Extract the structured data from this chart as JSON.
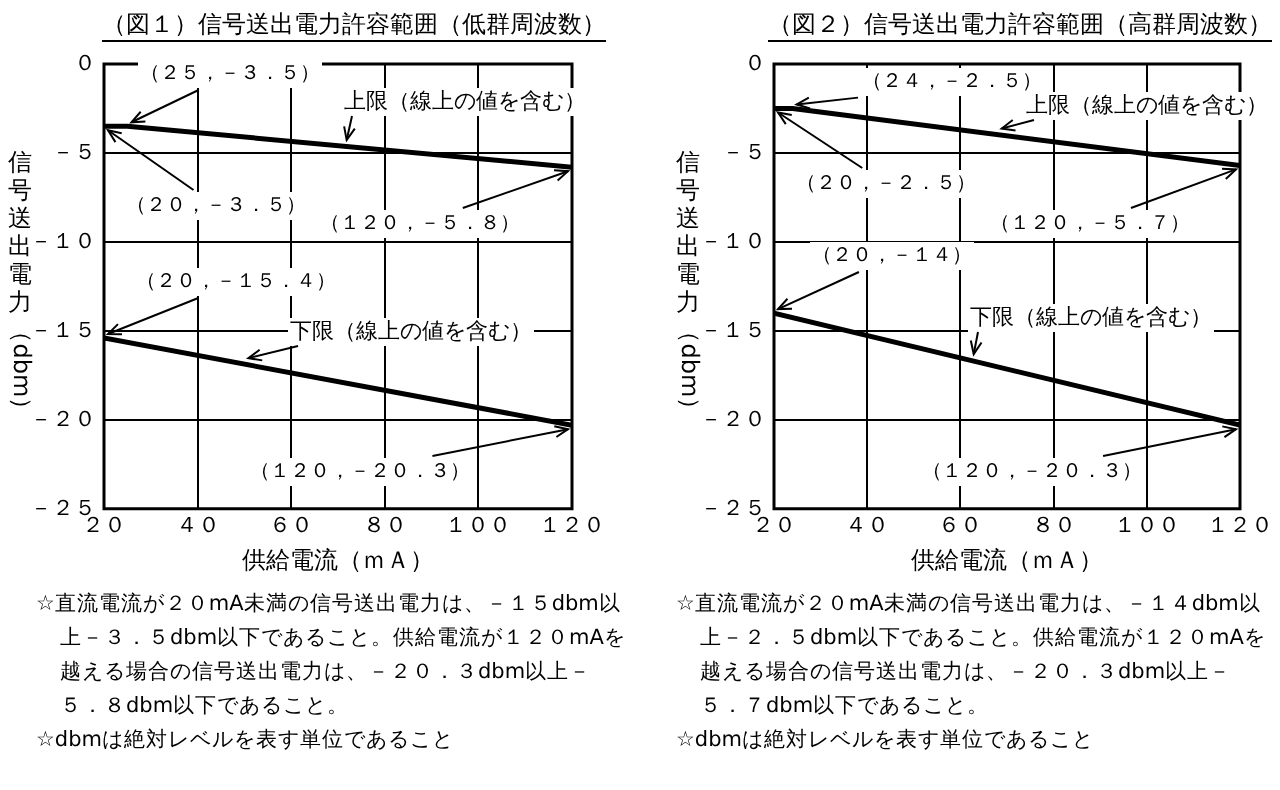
{
  "chart_data": [
    {
      "type": "line",
      "title": "（図１）信号送出電力許容範囲（低群周波数）",
      "xlabel": "供給電流（ｍＡ）",
      "ylabel": "信号送出電力（dbm）",
      "series": [
        {
          "name": "上限（線上の値を含む）",
          "color": "#000000",
          "x": [
            20,
            25,
            120
          ],
          "values": [
            -3.5,
            -3.5,
            -5.8
          ]
        },
        {
          "name": "下限（線上の値を含む）",
          "color": "#000000",
          "x": [
            20,
            120
          ],
          "values": [
            -15.4,
            -20.3
          ]
        }
      ],
      "xlim": [
        20,
        120
      ],
      "xticks": [
        {
          "value": 20,
          "label": "２０"
        },
        {
          "value": 40,
          "label": "４０"
        },
        {
          "value": 60,
          "label": "６０"
        },
        {
          "value": 80,
          "label": "８０"
        },
        {
          "value": 100,
          "label": "１００"
        },
        {
          "value": 120,
          "label": "１２０"
        }
      ],
      "ylim": [
        -25,
        0
      ],
      "yticks": [
        {
          "value": 0,
          "label": "０"
        },
        {
          "value": -5,
          "label": "－５"
        },
        {
          "value": -10,
          "label": "－１０"
        },
        {
          "value": -15,
          "label": "－１５"
        },
        {
          "value": -20,
          "label": "－２０"
        },
        {
          "value": -25,
          "label": "－２５"
        }
      ],
      "grid": true,
      "legend": false,
      "marker": "none",
      "line_style": "solid",
      "annotations": [
        {
          "text": "（２５，－３．５）",
          "x": 25,
          "y": -3.5
        },
        {
          "text": "（２０，－３．５）",
          "x": 20,
          "y": -3.5
        },
        {
          "text": "（１２０，－５．８）",
          "x": 120,
          "y": -5.8
        },
        {
          "text": "（２０，－１５．４）",
          "x": 20,
          "y": -15.4
        },
        {
          "text": "（１２０，－２０．３）",
          "x": 120,
          "y": -20.3
        },
        "☆直流電流が２０mA未満の信号送出電力は、－１５dbm以上－３．５dbm以下であること。供給電流が１２０mAを越える場合の信号送出電力は、－２０．３dbm以上－５．８dbm以下であること。",
        "☆dbmは絶対レベルを表す単位であること"
      ]
    },
    {
      "type": "line",
      "title": "（図２）信号送出電力許容範囲（高群周波数）",
      "xlabel": "供給電流（ｍＡ）",
      "ylabel": "信号送出電力（dbm）",
      "series": [
        {
          "name": "上限（線上の値を含む）",
          "color": "#000000",
          "x": [
            20,
            24,
            120
          ],
          "values": [
            -2.5,
            -2.5,
            -5.7
          ]
        },
        {
          "name": "下限（線上の値を含む）",
          "color": "#000000",
          "x": [
            20,
            120
          ],
          "values": [
            -14,
            -20.3
          ]
        }
      ],
      "xlim": [
        20,
        120
      ],
      "xticks": [
        {
          "value": 20,
          "label": "２０"
        },
        {
          "value": 40,
          "label": "４０"
        },
        {
          "value": 60,
          "label": "６０"
        },
        {
          "value": 80,
          "label": "８０"
        },
        {
          "value": 100,
          "label": "１００"
        },
        {
          "value": 120,
          "label": "１２０"
        }
      ],
      "ylim": [
        -25,
        0
      ],
      "yticks": [
        {
          "value": 0,
          "label": "０"
        },
        {
          "value": -5,
          "label": "－５"
        },
        {
          "value": -10,
          "label": "－１０"
        },
        {
          "value": -15,
          "label": "－１５"
        },
        {
          "value": -20,
          "label": "－２０"
        },
        {
          "value": -25,
          "label": "－２５"
        }
      ],
      "grid": true,
      "legend": false,
      "marker": "none",
      "line_style": "solid",
      "annotations": [
        {
          "text": "（２４，－２．５）",
          "x": 24,
          "y": -2.5
        },
        {
          "text": "（２０，－２．５）",
          "x": 20,
          "y": -2.5
        },
        {
          "text": "（１２０，－５．７）",
          "x": 120,
          "y": -5.7
        },
        {
          "text": "（２０，－１４）",
          "x": 20,
          "y": -14
        },
        {
          "text": "（１２０，－２０．３）",
          "x": 120,
          "y": -20.3
        },
        "☆直流電流が２０mA未満の信号送出電力は、－１４dbm以上－２．５dbm以下であること。供給電流が１２０mAを越える場合の信号送出電力は、－２０．３dbm以上－５．７dbm以下であること。",
        "☆dbmは絶対レベルを表す単位であること"
      ]
    }
  ]
}
